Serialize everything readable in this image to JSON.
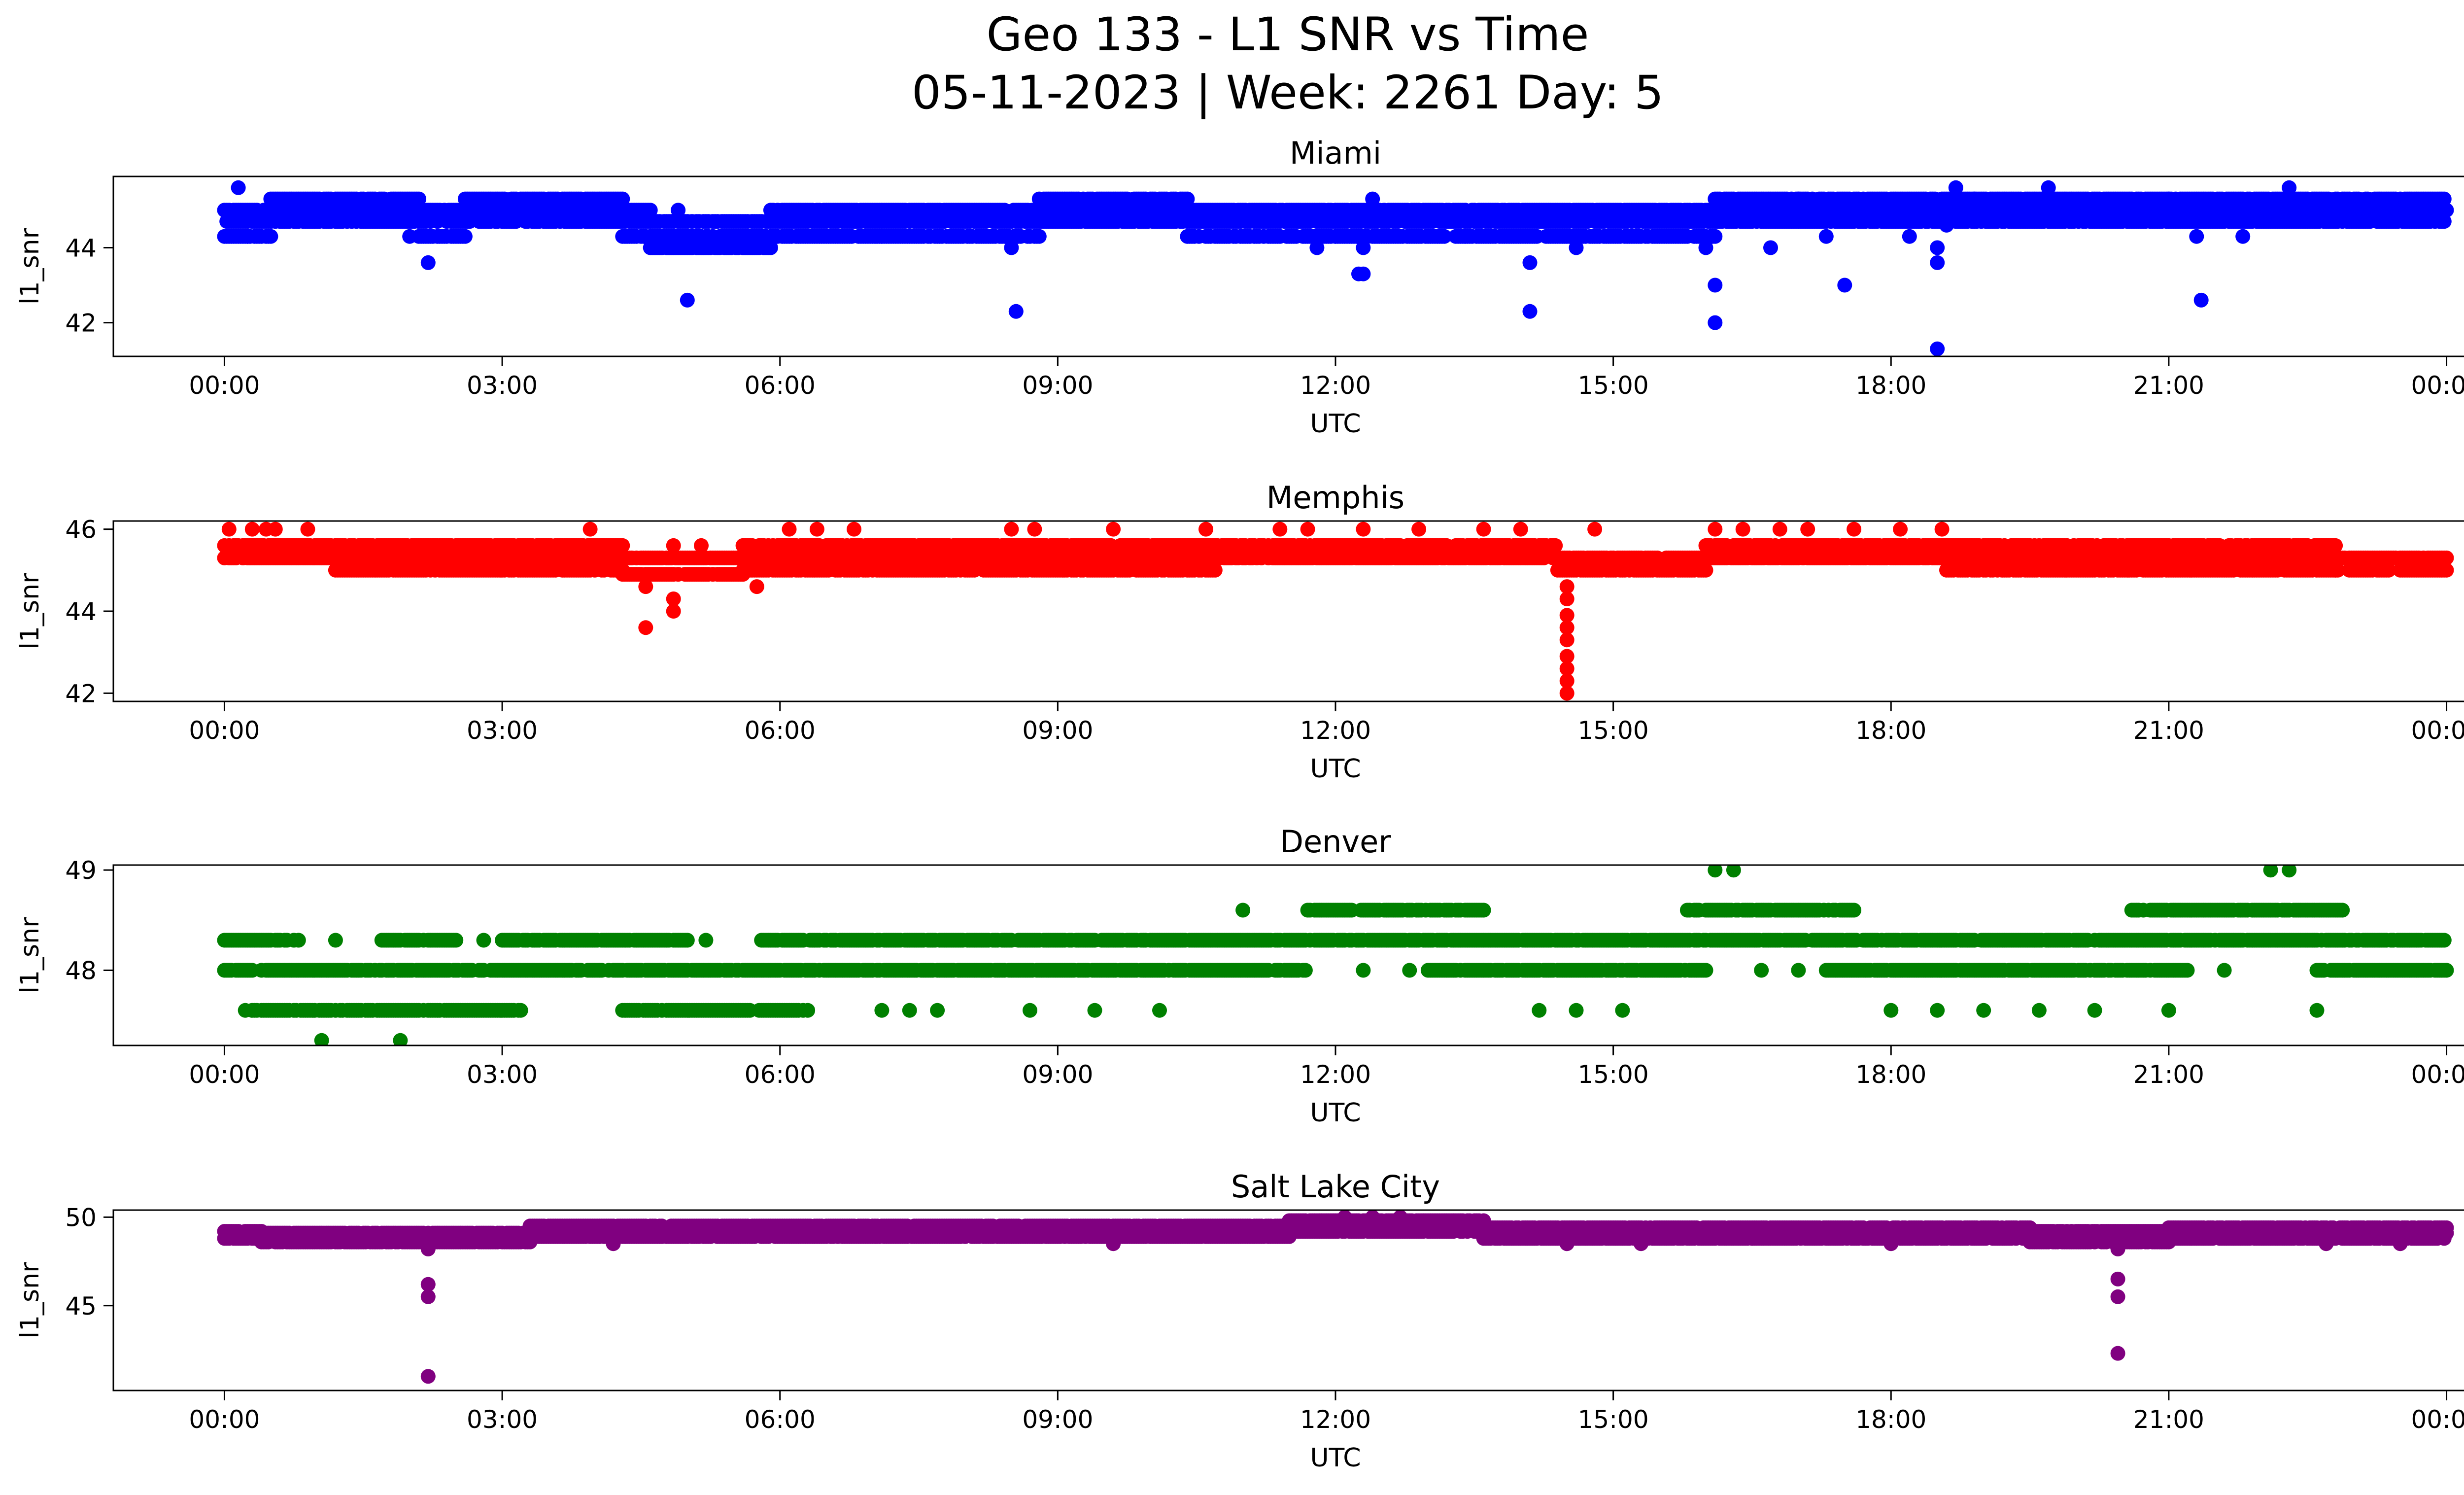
{
  "figure": {
    "suptitle_line1": "Geo 133 - L1 SNR vs Time",
    "suptitle_line2": "05-11-2023 | Week: 2261 Day: 5"
  },
  "chart_data": [
    {
      "type": "scatter",
      "title": "Miami",
      "xlabel": "UTC",
      "ylabel": "l1_snr",
      "color": "#0000ff",
      "x_ticks": [
        "00:00",
        "03:00",
        "06:00",
        "09:00",
        "12:00",
        "15:00",
        "18:00",
        "21:00",
        "00:00"
      ],
      "x_unit": "hours",
      "xlim": [
        -1.2,
        25.2
      ],
      "ylim": [
        41.1,
        45.9
      ],
      "y_ticks": [
        42,
        44
      ],
      "y_tick_labels": [
        "42",
        "44"
      ],
      "grid": false,
      "bands": [
        {
          "start": 0.0,
          "end": 0.5,
          "levels": [
            44.3,
            44.7,
            45.0
          ]
        },
        {
          "start": 0.5,
          "end": 2.1,
          "levels": [
            44.7,
            45.0,
            45.3
          ]
        },
        {
          "start": 2.1,
          "end": 2.6,
          "levels": [
            44.3,
            44.7,
            45.0
          ]
        },
        {
          "start": 2.6,
          "end": 4.3,
          "levels": [
            44.7,
            45.0,
            45.3
          ]
        },
        {
          "start": 4.3,
          "end": 4.6,
          "levels": [
            44.3,
            44.7,
            45.0
          ]
        },
        {
          "start": 4.6,
          "end": 5.9,
          "levels": [
            44.0,
            44.3,
            44.7
          ]
        },
        {
          "start": 5.9,
          "end": 7.1,
          "levels": [
            44.3,
            44.7,
            45.0
          ]
        },
        {
          "start": 7.1,
          "end": 8.8,
          "levels": [
            44.3,
            44.7,
            45.0
          ]
        },
        {
          "start": 8.8,
          "end": 10.4,
          "levels": [
            44.7,
            45.0,
            45.3
          ]
        },
        {
          "start": 10.4,
          "end": 12.0,
          "levels": [
            44.3,
            44.7,
            45.0
          ]
        },
        {
          "start": 12.0,
          "end": 13.4,
          "levels": [
            44.3,
            44.7,
            45.0
          ]
        },
        {
          "start": 13.4,
          "end": 16.1,
          "levels": [
            44.3,
            44.7,
            45.0
          ]
        },
        {
          "start": 16.1,
          "end": 17.0,
          "levels": [
            44.7,
            45.0,
            45.3
          ]
        },
        {
          "start": 17.0,
          "end": 18.9,
          "levels": [
            44.7,
            45.0,
            45.3
          ]
        },
        {
          "start": 18.9,
          "end": 21.0,
          "levels": [
            44.7,
            45.0,
            45.3
          ]
        },
        {
          "start": 21.0,
          "end": 24.0,
          "levels": [
            44.7,
            45.0,
            45.3
          ]
        }
      ],
      "band_density": 40,
      "outliers": [
        {
          "x": 0.15,
          "y": 45.6
        },
        {
          "x": 0.25,
          "y": 44.3
        },
        {
          "x": 2.2,
          "y": 43.6
        },
        {
          "x": 2.0,
          "y": 44.3
        },
        {
          "x": 4.8,
          "y": 44.0
        },
        {
          "x": 4.9,
          "y": 45.0
        },
        {
          "x": 5.0,
          "y": 42.6
        },
        {
          "x": 5.3,
          "y": 44.0
        },
        {
          "x": 6.5,
          "y": 45.0
        },
        {
          "x": 8.5,
          "y": 44.0
        },
        {
          "x": 8.55,
          "y": 42.3
        },
        {
          "x": 11.8,
          "y": 44.0
        },
        {
          "x": 12.25,
          "y": 43.3
        },
        {
          "x": 12.3,
          "y": 43.3
        },
        {
          "x": 12.3,
          "y": 44.0
        },
        {
          "x": 12.4,
          "y": 45.3
        },
        {
          "x": 14.1,
          "y": 43.6
        },
        {
          "x": 14.1,
          "y": 42.3
        },
        {
          "x": 14.6,
          "y": 44.0
        },
        {
          "x": 16.0,
          "y": 44.0
        },
        {
          "x": 16.1,
          "y": 43.0
        },
        {
          "x": 16.1,
          "y": 42.0
        },
        {
          "x": 16.7,
          "y": 44.0
        },
        {
          "x": 17.3,
          "y": 44.3
        },
        {
          "x": 17.5,
          "y": 43.0
        },
        {
          "x": 18.2,
          "y": 44.3
        },
        {
          "x": 18.5,
          "y": 44.0
        },
        {
          "x": 18.5,
          "y": 43.6
        },
        {
          "x": 18.5,
          "y": 41.3
        },
        {
          "x": 18.6,
          "y": 44.6
        },
        {
          "x": 18.7,
          "y": 45.6
        },
        {
          "x": 19.7,
          "y": 45.6
        },
        {
          "x": 21.3,
          "y": 44.3
        },
        {
          "x": 21.35,
          "y": 42.6
        },
        {
          "x": 22.3,
          "y": 45.6
        },
        {
          "x": 21.8,
          "y": 44.3
        }
      ]
    },
    {
      "type": "scatter",
      "title": "Memphis",
      "xlabel": "UTC",
      "ylabel": "l1_snr",
      "color": "#ff0000",
      "x_ticks": [
        "00:00",
        "03:00",
        "06:00",
        "09:00",
        "12:00",
        "15:00",
        "18:00",
        "21:00",
        "00:00"
      ],
      "x_unit": "hours",
      "xlim": [
        -1.2,
        25.2
      ],
      "ylim": [
        41.8,
        46.2
      ],
      "y_ticks": [
        42,
        44,
        46
      ],
      "y_tick_labels": [
        "42",
        "44",
        "46"
      ],
      "grid": false,
      "bands": [
        {
          "start": 0.0,
          "end": 1.2,
          "levels": [
            45.3,
            45.6
          ]
        },
        {
          "start": 1.2,
          "end": 4.3,
          "levels": [
            45.0,
            45.3,
            45.6
          ]
        },
        {
          "start": 4.3,
          "end": 5.6,
          "levels": [
            44.9,
            45.3
          ]
        },
        {
          "start": 5.6,
          "end": 10.7,
          "levels": [
            45.0,
            45.3,
            45.6
          ]
        },
        {
          "start": 10.7,
          "end": 14.4,
          "levels": [
            45.3,
            45.6
          ]
        },
        {
          "start": 14.4,
          "end": 16.0,
          "levels": [
            45.0,
            45.3
          ]
        },
        {
          "start": 16.0,
          "end": 18.6,
          "levels": [
            45.3,
            45.6
          ]
        },
        {
          "start": 18.6,
          "end": 22.8,
          "levels": [
            45.0,
            45.3,
            45.6
          ]
        },
        {
          "start": 22.8,
          "end": 24.0,
          "levels": [
            45.0,
            45.3
          ]
        }
      ],
      "band_density": 40,
      "outliers": [
        {
          "x": 0.05,
          "y": 46.0
        },
        {
          "x": 0.3,
          "y": 46.0
        },
        {
          "x": 0.45,
          "y": 46.0
        },
        {
          "x": 0.55,
          "y": 46.0
        },
        {
          "x": 0.9,
          "y": 46.0
        },
        {
          "x": 3.95,
          "y": 46.0
        },
        {
          "x": 4.55,
          "y": 44.6
        },
        {
          "x": 4.55,
          "y": 43.6
        },
        {
          "x": 4.85,
          "y": 44.3
        },
        {
          "x": 4.85,
          "y": 44.0
        },
        {
          "x": 4.85,
          "y": 45.6
        },
        {
          "x": 5.15,
          "y": 45.6
        },
        {
          "x": 5.75,
          "y": 44.6
        },
        {
          "x": 6.1,
          "y": 46.0
        },
        {
          "x": 6.4,
          "y": 46.0
        },
        {
          "x": 6.8,
          "y": 46.0
        },
        {
          "x": 8.5,
          "y": 46.0
        },
        {
          "x": 8.75,
          "y": 46.0
        },
        {
          "x": 9.6,
          "y": 46.0
        },
        {
          "x": 10.6,
          "y": 46.0
        },
        {
          "x": 11.4,
          "y": 46.0
        },
        {
          "x": 11.7,
          "y": 46.0
        },
        {
          "x": 12.3,
          "y": 46.0
        },
        {
          "x": 12.9,
          "y": 46.0
        },
        {
          "x": 13.6,
          "y": 46.0
        },
        {
          "x": 14.0,
          "y": 46.0
        },
        {
          "x": 14.5,
          "y": 44.6
        },
        {
          "x": 14.5,
          "y": 44.3
        },
        {
          "x": 14.5,
          "y": 43.9
        },
        {
          "x": 14.5,
          "y": 43.6
        },
        {
          "x": 14.5,
          "y": 43.3
        },
        {
          "x": 14.5,
          "y": 42.9
        },
        {
          "x": 14.5,
          "y": 42.6
        },
        {
          "x": 14.5,
          "y": 42.3
        },
        {
          "x": 14.5,
          "y": 42.0
        },
        {
          "x": 14.8,
          "y": 46.0
        },
        {
          "x": 16.1,
          "y": 46.0
        },
        {
          "x": 16.4,
          "y": 46.0
        },
        {
          "x": 16.8,
          "y": 46.0
        },
        {
          "x": 17.1,
          "y": 46.0
        },
        {
          "x": 17.6,
          "y": 46.0
        },
        {
          "x": 18.1,
          "y": 46.0
        },
        {
          "x": 18.55,
          "y": 46.0
        }
      ]
    },
    {
      "type": "scatter",
      "title": "Denver",
      "xlabel": "UTC",
      "ylabel": "l1_snr",
      "color": "#008000",
      "x_ticks": [
        "00:00",
        "03:00",
        "06:00",
        "09:00",
        "12:00",
        "15:00",
        "18:00",
        "21:00",
        "00:00"
      ],
      "x_unit": "hours",
      "xlim": [
        -1.2,
        25.2
      ],
      "ylim": [
        47.25,
        49.05
      ],
      "y_ticks": [
        48,
        49
      ],
      "y_tick_labels": [
        "48",
        "49"
      ],
      "grid": false,
      "bands": [
        {
          "start": 0.0,
          "end": 11.7,
          "levels": [
            48.0
          ]
        },
        {
          "start": 13.0,
          "end": 16.0,
          "levels": [
            48.0
          ]
        },
        {
          "start": 17.3,
          "end": 21.2,
          "levels": [
            48.0
          ]
        },
        {
          "start": 22.6,
          "end": 24.0,
          "levels": [
            48.0
          ]
        },
        {
          "start": 0.0,
          "end": 0.8,
          "levels": [
            48.3
          ]
        },
        {
          "start": 1.7,
          "end": 2.5,
          "levels": [
            48.3
          ]
        },
        {
          "start": 3.0,
          "end": 5.0,
          "levels": [
            48.3
          ]
        },
        {
          "start": 5.8,
          "end": 6.3,
          "levels": [
            48.3
          ]
        },
        {
          "start": 6.3,
          "end": 24.0,
          "levels": [
            48.3
          ]
        },
        {
          "start": 0.2,
          "end": 3.2,
          "levels": [
            47.6
          ]
        },
        {
          "start": 4.3,
          "end": 6.3,
          "levels": [
            47.6
          ]
        },
        {
          "start": 11.7,
          "end": 13.6,
          "levels": [
            48.6
          ]
        },
        {
          "start": 15.8,
          "end": 17.6,
          "levels": [
            48.6
          ]
        },
        {
          "start": 20.6,
          "end": 22.9,
          "levels": [
            48.6
          ]
        }
      ],
      "band_density": 40,
      "outliers": [
        {
          "x": 1.05,
          "y": 47.3
        },
        {
          "x": 1.9,
          "y": 47.3
        },
        {
          "x": 1.2,
          "y": 48.3
        },
        {
          "x": 2.8,
          "y": 48.3
        },
        {
          "x": 5.2,
          "y": 48.3
        },
        {
          "x": 7.1,
          "y": 47.6
        },
        {
          "x": 7.4,
          "y": 47.6
        },
        {
          "x": 7.7,
          "y": 47.6
        },
        {
          "x": 8.7,
          "y": 47.6
        },
        {
          "x": 9.4,
          "y": 47.6
        },
        {
          "x": 10.1,
          "y": 47.6
        },
        {
          "x": 11.0,
          "y": 48.6
        },
        {
          "x": 12.3,
          "y": 48.0
        },
        {
          "x": 12.8,
          "y": 48.0
        },
        {
          "x": 14.2,
          "y": 47.6
        },
        {
          "x": 14.6,
          "y": 47.6
        },
        {
          "x": 15.1,
          "y": 47.6
        },
        {
          "x": 16.1,
          "y": 49.0
        },
        {
          "x": 16.3,
          "y": 49.0
        },
        {
          "x": 16.6,
          "y": 48.0
        },
        {
          "x": 17.0,
          "y": 48.0
        },
        {
          "x": 18.0,
          "y": 47.6
        },
        {
          "x": 18.5,
          "y": 47.6
        },
        {
          "x": 19.0,
          "y": 47.6
        },
        {
          "x": 19.6,
          "y": 47.6
        },
        {
          "x": 20.2,
          "y": 47.6
        },
        {
          "x": 21.0,
          "y": 47.6
        },
        {
          "x": 21.6,
          "y": 48.0
        },
        {
          "x": 22.1,
          "y": 49.0
        },
        {
          "x": 22.3,
          "y": 49.0
        },
        {
          "x": 22.6,
          "y": 47.6
        }
      ]
    },
    {
      "type": "scatter",
      "title": "Salt Lake City",
      "xlabel": "UTC",
      "ylabel": "l1_snr",
      "color": "#800080",
      "x_ticks": [
        "00:00",
        "03:00",
        "06:00",
        "09:00",
        "12:00",
        "15:00",
        "18:00",
        "21:00",
        "00:00"
      ],
      "x_unit": "hours",
      "xlim": [
        -1.2,
        25.2
      ],
      "ylim": [
        40.2,
        50.4
      ],
      "y_ticks": [
        45,
        50
      ],
      "y_tick_labels": [
        "45",
        "50"
      ],
      "grid": false,
      "bands": [
        {
          "start": 0.0,
          "end": 0.4,
          "levels": [
            48.8,
            49.2
          ]
        },
        {
          "start": 0.4,
          "end": 3.3,
          "levels": [
            48.6,
            48.9,
            49.1
          ]
        },
        {
          "start": 3.3,
          "end": 11.5,
          "levels": [
            48.9,
            49.2,
            49.5
          ]
        },
        {
          "start": 11.5,
          "end": 13.6,
          "levels": [
            49.2,
            49.5,
            49.8
          ]
        },
        {
          "start": 13.6,
          "end": 16.5,
          "levels": [
            48.8,
            49.1,
            49.4
          ]
        },
        {
          "start": 16.5,
          "end": 19.5,
          "levels": [
            48.8,
            49.1,
            49.4
          ]
        },
        {
          "start": 19.5,
          "end": 21.0,
          "levels": [
            48.6,
            48.9,
            49.2
          ]
        },
        {
          "start": 21.0,
          "end": 24.0,
          "levels": [
            48.8,
            49.1,
            49.4
          ]
        }
      ],
      "band_density": 40,
      "outliers": [
        {
          "x": 2.2,
          "y": 46.2
        },
        {
          "x": 2.2,
          "y": 45.5
        },
        {
          "x": 2.2,
          "y": 48.2
        },
        {
          "x": 2.2,
          "y": 41.0
        },
        {
          "x": 4.2,
          "y": 48.5
        },
        {
          "x": 9.6,
          "y": 48.5
        },
        {
          "x": 12.1,
          "y": 50.0
        },
        {
          "x": 12.4,
          "y": 50.0
        },
        {
          "x": 12.7,
          "y": 50.0
        },
        {
          "x": 14.5,
          "y": 48.5
        },
        {
          "x": 15.3,
          "y": 48.5
        },
        {
          "x": 18.0,
          "y": 48.5
        },
        {
          "x": 20.45,
          "y": 46.5
        },
        {
          "x": 20.45,
          "y": 45.5
        },
        {
          "x": 20.45,
          "y": 42.3
        },
        {
          "x": 20.45,
          "y": 48.2
        },
        {
          "x": 22.7,
          "y": 48.5
        },
        {
          "x": 23.5,
          "y": 48.5
        }
      ]
    }
  ]
}
